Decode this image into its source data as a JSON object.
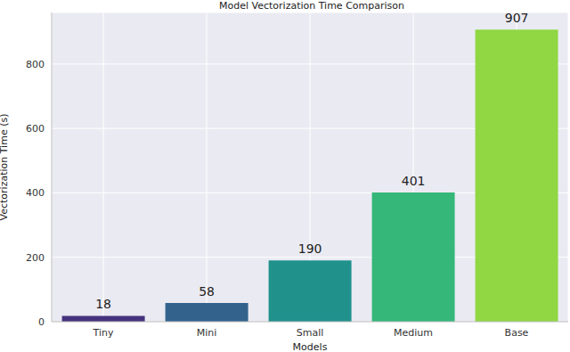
{
  "chart_data": {
    "type": "bar",
    "title": "Model Vectorization Time Comparison",
    "x_label": "Models",
    "y_label": "Vectorization Time (s)",
    "categories": [
      "Tiny",
      "Mini",
      "Small",
      "Medium",
      "Base"
    ],
    "values": [
      18,
      58,
      190,
      401,
      907
    ],
    "colors": [
      "#46337e",
      "#33638d",
      "#21918c",
      "#35b779",
      "#90d743"
    ],
    "ylim": [
      0,
      960
    ],
    "yticks": [
      0,
      200,
      400,
      600,
      800
    ],
    "grid": true,
    "data_labels": true
  }
}
